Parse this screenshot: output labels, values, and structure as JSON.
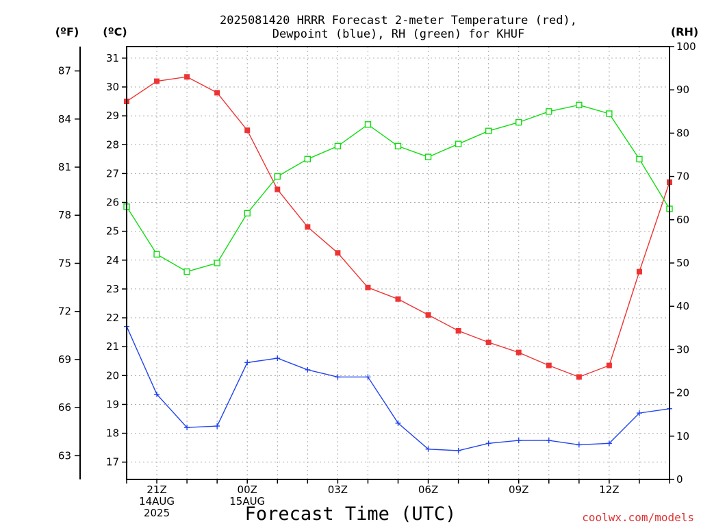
{
  "chart_data": {
    "type": "line",
    "title_line1": "2025081420 HRRR Forecast 2-meter Temperature (red),",
    "title_line2": "Dewpoint (blue), RH (green) for KHUF",
    "axis_label_f": "(ºF)",
    "axis_label_c": "(ºC)",
    "axis_label_rh": "(RH)",
    "xlabel": "Forecast Time (UTC)",
    "watermark": "coolwx.com/models",
    "x_hours": [
      0,
      1,
      2,
      3,
      4,
      5,
      6,
      7,
      8,
      9,
      10,
      11,
      12,
      13,
      14,
      15,
      16,
      17,
      18
    ],
    "x_tick_labels": [
      {
        "hour": 1,
        "lines": [
          "21Z",
          "14AUG",
          "2025"
        ]
      },
      {
        "hour": 4,
        "lines": [
          "00Z",
          "15AUG"
        ]
      },
      {
        "hour": 7,
        "lines": [
          "03Z"
        ]
      },
      {
        "hour": 10,
        "lines": [
          "06Z"
        ]
      },
      {
        "hour": 13,
        "lines": [
          "09Z"
        ]
      },
      {
        "hour": 16,
        "lines": [
          "12Z"
        ]
      }
    ],
    "ylim_c": [
      16.4,
      31.4
    ],
    "yticks_c": [
      17,
      18,
      19,
      20,
      21,
      22,
      23,
      24,
      25,
      26,
      27,
      28,
      29,
      30,
      31
    ],
    "yticks_f": [
      63,
      66,
      69,
      72,
      75,
      78,
      81,
      84,
      87
    ],
    "ylim_rh": [
      0,
      100
    ],
    "yticks_rh": [
      0,
      10,
      20,
      30,
      40,
      50,
      60,
      70,
      80,
      90,
      100
    ],
    "grid": true,
    "series": [
      {
        "name": "Temperature (red)",
        "axis": "C",
        "color": "#ee3333",
        "marker": "filled-square",
        "values": [
          29.5,
          30.2,
          30.35,
          29.8,
          28.5,
          26.45,
          25.15,
          24.25,
          23.05,
          22.65,
          22.1,
          21.55,
          21.15,
          20.8,
          20.35,
          19.95,
          20.35,
          23.6,
          26.7
        ]
      },
      {
        "name": "Dewpoint (blue)",
        "axis": "C",
        "color": "#2244ee",
        "marker": "plus",
        "values": [
          21.7,
          19.35,
          18.2,
          18.25,
          20.45,
          20.6,
          20.2,
          19.95,
          19.95,
          18.35,
          17.45,
          17.4,
          17.65,
          17.75,
          17.75,
          17.6,
          17.65,
          18.7,
          18.85
        ]
      },
      {
        "name": "RH (green)",
        "axis": "RH",
        "color": "#11dd11",
        "marker": "open-square",
        "values": [
          63,
          52,
          48,
          50,
          61.5,
          70,
          74,
          77,
          82,
          77,
          74.5,
          77.5,
          80.5,
          82.5,
          85,
          86.5,
          84.5,
          74,
          62.5
        ]
      }
    ]
  }
}
